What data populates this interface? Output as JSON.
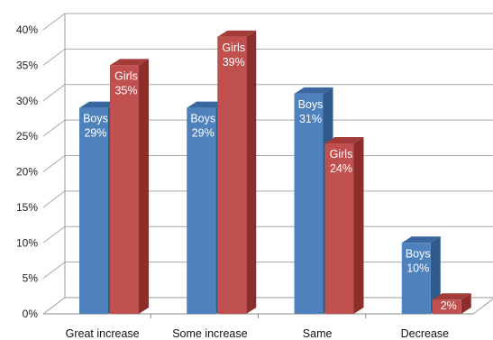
{
  "chart_data": {
    "type": "bar",
    "categories": [
      "Great increase",
      "Some increase",
      "Same",
      "Decrease"
    ],
    "series": [
      {
        "name": "Boys",
        "values": [
          29,
          29,
          31,
          10
        ],
        "color": "#4F81BD",
        "side_color": "#2F5A8C",
        "top_color": "#3B67A0"
      },
      {
        "name": "Girls",
        "values": [
          35,
          39,
          24,
          2
        ],
        "color": "#C0504D",
        "side_color": "#8C2F2C",
        "top_color": "#A33C39"
      }
    ],
    "data_labels": [
      [
        [
          "Boys",
          "29%"
        ],
        [
          "Boys",
          "29%"
        ],
        [
          "Boys",
          "31%"
        ],
        [
          "Boys",
          "10%"
        ]
      ],
      [
        [
          "Girls",
          "35%"
        ],
        [
          "Girls",
          "39%"
        ],
        [
          "Girls",
          "24%"
        ],
        [
          "",
          "2%"
        ]
      ]
    ],
    "y_ticks": [
      "0%",
      "5%",
      "10%",
      "15%",
      "20%",
      "25%",
      "30%",
      "35%",
      "40%"
    ],
    "ylim": [
      0,
      40
    ],
    "ytick_step": 5,
    "grid": true,
    "legend": "none",
    "title": "",
    "xlabel": "",
    "ylabel": ""
  }
}
